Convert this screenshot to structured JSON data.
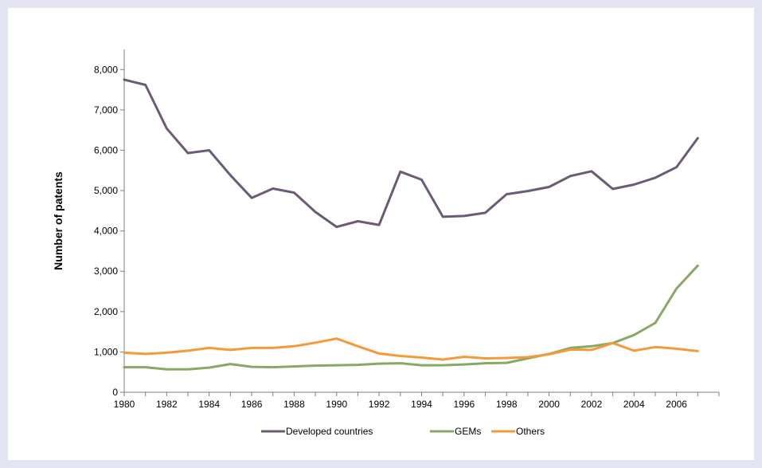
{
  "chart_data": {
    "type": "line",
    "title": "",
    "xlabel": "",
    "ylabel": "Number of patents",
    "x": [
      1980,
      1981,
      1982,
      1983,
      1984,
      1985,
      1986,
      1987,
      1988,
      1989,
      1990,
      1991,
      1992,
      1993,
      1994,
      1995,
      1996,
      1997,
      1998,
      1999,
      2000,
      2001,
      2002,
      2003,
      2004,
      2005,
      2006,
      2007
    ],
    "x_tick_labels": [
      "1980",
      "1982",
      "1984",
      "1986",
      "1988",
      "1990",
      "1992",
      "1994",
      "1996",
      "1998",
      "2000",
      "2002",
      "2004",
      "2006"
    ],
    "y_tick_labels": [
      "0",
      "1,000",
      "2,000",
      "3,000",
      "4,000",
      "5,000",
      "6,000",
      "7,000",
      "8,000"
    ],
    "ylim": [
      0,
      8500
    ],
    "xlim": [
      1980,
      2008
    ],
    "grid": false,
    "legend_position": "bottom-center",
    "series": [
      {
        "name": "Developed countries",
        "color": "#6b5b75",
        "values": [
          7750,
          7620,
          6540,
          5930,
          6000,
          5380,
          4820,
          5050,
          4950,
          4470,
          4100,
          4240,
          4150,
          5470,
          5270,
          4350,
          4370,
          4450,
          4910,
          4990,
          5090,
          5360,
          5480,
          5040,
          5150,
          5320,
          5580,
          6300
        ]
      },
      {
        "name": "GEMs",
        "color": "#88a866",
        "values": [
          620,
          620,
          570,
          570,
          610,
          700,
          630,
          620,
          640,
          660,
          670,
          680,
          710,
          720,
          670,
          670,
          690,
          720,
          730,
          840,
          950,
          1100,
          1140,
          1220,
          1420,
          1720,
          2570,
          3140
        ]
      },
      {
        "name": "Others",
        "color": "#f39b3a",
        "values": [
          980,
          950,
          980,
          1030,
          1100,
          1050,
          1100,
          1100,
          1140,
          1230,
          1330,
          1140,
          960,
          900,
          860,
          810,
          880,
          840,
          850,
          870,
          940,
          1060,
          1050,
          1220,
          1030,
          1120,
          1080,
          1020
        ]
      }
    ]
  }
}
